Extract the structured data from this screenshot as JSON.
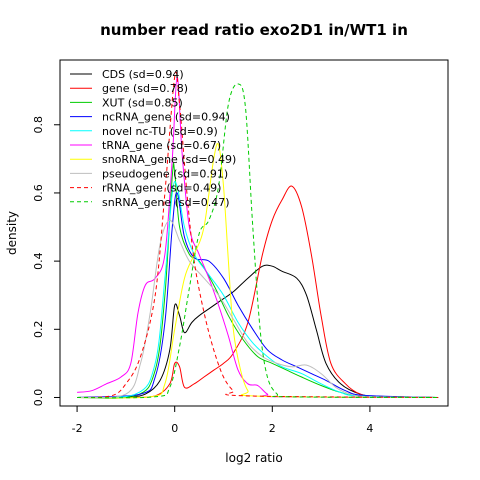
{
  "chart_data": {
    "type": "line",
    "title": "number read ratio exo2D1 in/WT1 in",
    "xlabel": "log2 ratio",
    "ylabel": "density",
    "xlim": [
      -2.35,
      5.6
    ],
    "ylim": [
      -0.025,
      0.99
    ],
    "x_ticks": [
      -2,
      0,
      2,
      4
    ],
    "y_ticks": [
      0.0,
      0.2,
      0.4,
      0.6,
      0.8
    ],
    "grid": false,
    "legend_position": "top-left",
    "series": [
      {
        "name": "CDS (sd=0.94)",
        "color": "#000000",
        "dash": "solid",
        "points": [
          [
            -2.0,
            0.0
          ],
          [
            -1.0,
            0.002
          ],
          [
            -0.6,
            0.01
          ],
          [
            -0.3,
            0.05
          ],
          [
            -0.1,
            0.14
          ],
          [
            0.0,
            0.27
          ],
          [
            0.1,
            0.24
          ],
          [
            0.2,
            0.19
          ],
          [
            0.35,
            0.22
          ],
          [
            0.5,
            0.24
          ],
          [
            0.7,
            0.26
          ],
          [
            0.9,
            0.28
          ],
          [
            1.2,
            0.31
          ],
          [
            1.5,
            0.35
          ],
          [
            1.8,
            0.385
          ],
          [
            2.0,
            0.385
          ],
          [
            2.2,
            0.37
          ],
          [
            2.5,
            0.35
          ],
          [
            2.7,
            0.3
          ],
          [
            2.9,
            0.2
          ],
          [
            3.1,
            0.1
          ],
          [
            3.4,
            0.04
          ],
          [
            3.8,
            0.01
          ],
          [
            4.2,
            0.003
          ],
          [
            5.4,
            0.0
          ]
        ]
      },
      {
        "name": "gene (sd=0.78)",
        "color": "#ff0000",
        "dash": "solid",
        "points": [
          [
            -2.0,
            0.0
          ],
          [
            -1.0,
            0.0
          ],
          [
            -0.4,
            0.005
          ],
          [
            -0.1,
            0.04
          ],
          [
            0.0,
            0.1
          ],
          [
            0.1,
            0.09
          ],
          [
            0.2,
            0.03
          ],
          [
            0.4,
            0.04
          ],
          [
            0.6,
            0.06
          ],
          [
            0.8,
            0.08
          ],
          [
            1.0,
            0.1
          ],
          [
            1.2,
            0.13
          ],
          [
            1.5,
            0.22
          ],
          [
            1.8,
            0.42
          ],
          [
            2.0,
            0.52
          ],
          [
            2.2,
            0.58
          ],
          [
            2.4,
            0.62
          ],
          [
            2.6,
            0.56
          ],
          [
            2.8,
            0.42
          ],
          [
            3.0,
            0.24
          ],
          [
            3.2,
            0.1
          ],
          [
            3.5,
            0.04
          ],
          [
            3.8,
            0.01
          ],
          [
            4.2,
            0.002
          ],
          [
            5.4,
            0.0
          ]
        ]
      },
      {
        "name": "XUT (sd=0.85)",
        "color": "#00cc00",
        "dash": "solid",
        "points": [
          [
            -2.0,
            0.0
          ],
          [
            -0.8,
            0.005
          ],
          [
            -0.4,
            0.08
          ],
          [
            -0.2,
            0.3
          ],
          [
            -0.05,
            0.65
          ],
          [
            0.0,
            0.66
          ],
          [
            0.1,
            0.5
          ],
          [
            0.3,
            0.42
          ],
          [
            0.5,
            0.4
          ],
          [
            0.8,
            0.33
          ],
          [
            1.1,
            0.24
          ],
          [
            1.4,
            0.17
          ],
          [
            1.7,
            0.12
          ],
          [
            2.0,
            0.1
          ],
          [
            2.3,
            0.08
          ],
          [
            2.6,
            0.06
          ],
          [
            3.0,
            0.035
          ],
          [
            3.4,
            0.015
          ],
          [
            3.8,
            0.005
          ],
          [
            5.4,
            0.0
          ]
        ]
      },
      {
        "name": "ncRNA_gene (sd=0.94)",
        "color": "#0000ff",
        "dash": "solid",
        "points": [
          [
            -2.0,
            0.0
          ],
          [
            -0.7,
            0.01
          ],
          [
            -0.4,
            0.06
          ],
          [
            -0.2,
            0.22
          ],
          [
            -0.05,
            0.5
          ],
          [
            0.05,
            0.6
          ],
          [
            0.2,
            0.47
          ],
          [
            0.4,
            0.41
          ],
          [
            0.7,
            0.4
          ],
          [
            1.0,
            0.35
          ],
          [
            1.3,
            0.27
          ],
          [
            1.6,
            0.2
          ],
          [
            1.9,
            0.14
          ],
          [
            2.2,
            0.11
          ],
          [
            2.5,
            0.09
          ],
          [
            2.8,
            0.07
          ],
          [
            3.1,
            0.05
          ],
          [
            3.5,
            0.02
          ],
          [
            3.9,
            0.006
          ],
          [
            5.4,
            0.0
          ]
        ]
      },
      {
        "name": "novel nc-TU (sd=0.9)",
        "color": "#00ffff",
        "dash": "solid",
        "points": [
          [
            -2.0,
            0.0
          ],
          [
            -0.8,
            0.01
          ],
          [
            -0.4,
            0.1
          ],
          [
            -0.2,
            0.35
          ],
          [
            -0.05,
            0.6
          ],
          [
            0.05,
            0.62
          ],
          [
            0.2,
            0.5
          ],
          [
            0.4,
            0.42
          ],
          [
            0.7,
            0.36
          ],
          [
            1.0,
            0.3
          ],
          [
            1.3,
            0.22
          ],
          [
            1.6,
            0.16
          ],
          [
            1.9,
            0.12
          ],
          [
            2.2,
            0.09
          ],
          [
            2.6,
            0.07
          ],
          [
            3.0,
            0.04
          ],
          [
            3.4,
            0.015
          ],
          [
            3.8,
            0.004
          ],
          [
            5.4,
            0.0
          ]
        ]
      },
      {
        "name": "tRNA_gene (sd=0.67)",
        "color": "#ff00ff",
        "dash": "solid",
        "points": [
          [
            -2.0,
            0.015
          ],
          [
            -1.7,
            0.02
          ],
          [
            -1.4,
            0.04
          ],
          [
            -1.1,
            0.06
          ],
          [
            -0.9,
            0.1
          ],
          [
            -0.75,
            0.25
          ],
          [
            -0.6,
            0.33
          ],
          [
            -0.4,
            0.35
          ],
          [
            -0.2,
            0.42
          ],
          [
            -0.05,
            0.7
          ],
          [
            0.05,
            0.94
          ],
          [
            0.15,
            0.72
          ],
          [
            0.3,
            0.5
          ],
          [
            0.5,
            0.42
          ],
          [
            0.7,
            0.35
          ],
          [
            0.9,
            0.27
          ],
          [
            1.1,
            0.18
          ],
          [
            1.3,
            0.08
          ],
          [
            1.5,
            0.04
          ],
          [
            1.7,
            0.035
          ],
          [
            1.9,
            0.01
          ],
          [
            2.1,
            0.002
          ],
          [
            5.4,
            0.0
          ]
        ]
      },
      {
        "name": "snoRNA_gene (sd=0.49)",
        "color": "#ffff00",
        "dash": "solid",
        "points": [
          [
            -2.0,
            0.0
          ],
          [
            -0.5,
            0.002
          ],
          [
            -0.2,
            0.04
          ],
          [
            0.0,
            0.2
          ],
          [
            0.2,
            0.35
          ],
          [
            0.4,
            0.42
          ],
          [
            0.6,
            0.5
          ],
          [
            0.8,
            0.7
          ],
          [
            0.9,
            0.74
          ],
          [
            1.0,
            0.62
          ],
          [
            1.1,
            0.4
          ],
          [
            1.2,
            0.2
          ],
          [
            1.35,
            0.08
          ],
          [
            1.5,
            0.02
          ],
          [
            1.7,
            0.004
          ],
          [
            5.4,
            0.0
          ]
        ]
      },
      {
        "name": "pseudogene (sd=0.91)",
        "color": "#bebebe",
        "dash": "solid",
        "points": [
          [
            -2.0,
            0.0
          ],
          [
            -1.0,
            0.01
          ],
          [
            -0.7,
            0.1
          ],
          [
            -0.5,
            0.25
          ],
          [
            -0.3,
            0.45
          ],
          [
            -0.1,
            0.52
          ],
          [
            0.1,
            0.46
          ],
          [
            0.3,
            0.4
          ],
          [
            0.6,
            0.35
          ],
          [
            0.9,
            0.3
          ],
          [
            1.2,
            0.23
          ],
          [
            1.5,
            0.16
          ],
          [
            1.8,
            0.12
          ],
          [
            2.1,
            0.1
          ],
          [
            2.4,
            0.09
          ],
          [
            2.7,
            0.095
          ],
          [
            3.0,
            0.07
          ],
          [
            3.3,
            0.03
          ],
          [
            3.6,
            0.01
          ],
          [
            4.0,
            0.002
          ],
          [
            5.4,
            0.0
          ]
        ]
      },
      {
        "name": "rRNA_gene (sd=0.49)",
        "color": "#ff0000",
        "dash": "dashed",
        "points": [
          [
            -2.0,
            0.0
          ],
          [
            -1.3,
            0.005
          ],
          [
            -1.0,
            0.04
          ],
          [
            -0.7,
            0.12
          ],
          [
            -0.4,
            0.3
          ],
          [
            -0.2,
            0.6
          ],
          [
            0.0,
            0.94
          ],
          [
            0.1,
            0.86
          ],
          [
            0.25,
            0.6
          ],
          [
            0.4,
            0.4
          ],
          [
            0.6,
            0.25
          ],
          [
            0.8,
            0.14
          ],
          [
            1.0,
            0.06
          ],
          [
            1.2,
            0.02
          ],
          [
            1.4,
            0.005
          ],
          [
            5.4,
            0.0
          ]
        ]
      },
      {
        "name": "snRNA_gene (sd=0.47)",
        "color": "#00cc00",
        "dash": "dashed",
        "points": [
          [
            -2.0,
            0.0
          ],
          [
            -0.4,
            0.002
          ],
          [
            -0.1,
            0.03
          ],
          [
            0.1,
            0.15
          ],
          [
            0.3,
            0.32
          ],
          [
            0.5,
            0.48
          ],
          [
            0.7,
            0.52
          ],
          [
            0.9,
            0.62
          ],
          [
            1.1,
            0.86
          ],
          [
            1.3,
            0.92
          ],
          [
            1.45,
            0.85
          ],
          [
            1.6,
            0.5
          ],
          [
            1.75,
            0.2
          ],
          [
            1.9,
            0.06
          ],
          [
            2.1,
            0.01
          ],
          [
            2.3,
            0.002
          ],
          [
            5.4,
            0.0
          ]
        ]
      }
    ]
  }
}
